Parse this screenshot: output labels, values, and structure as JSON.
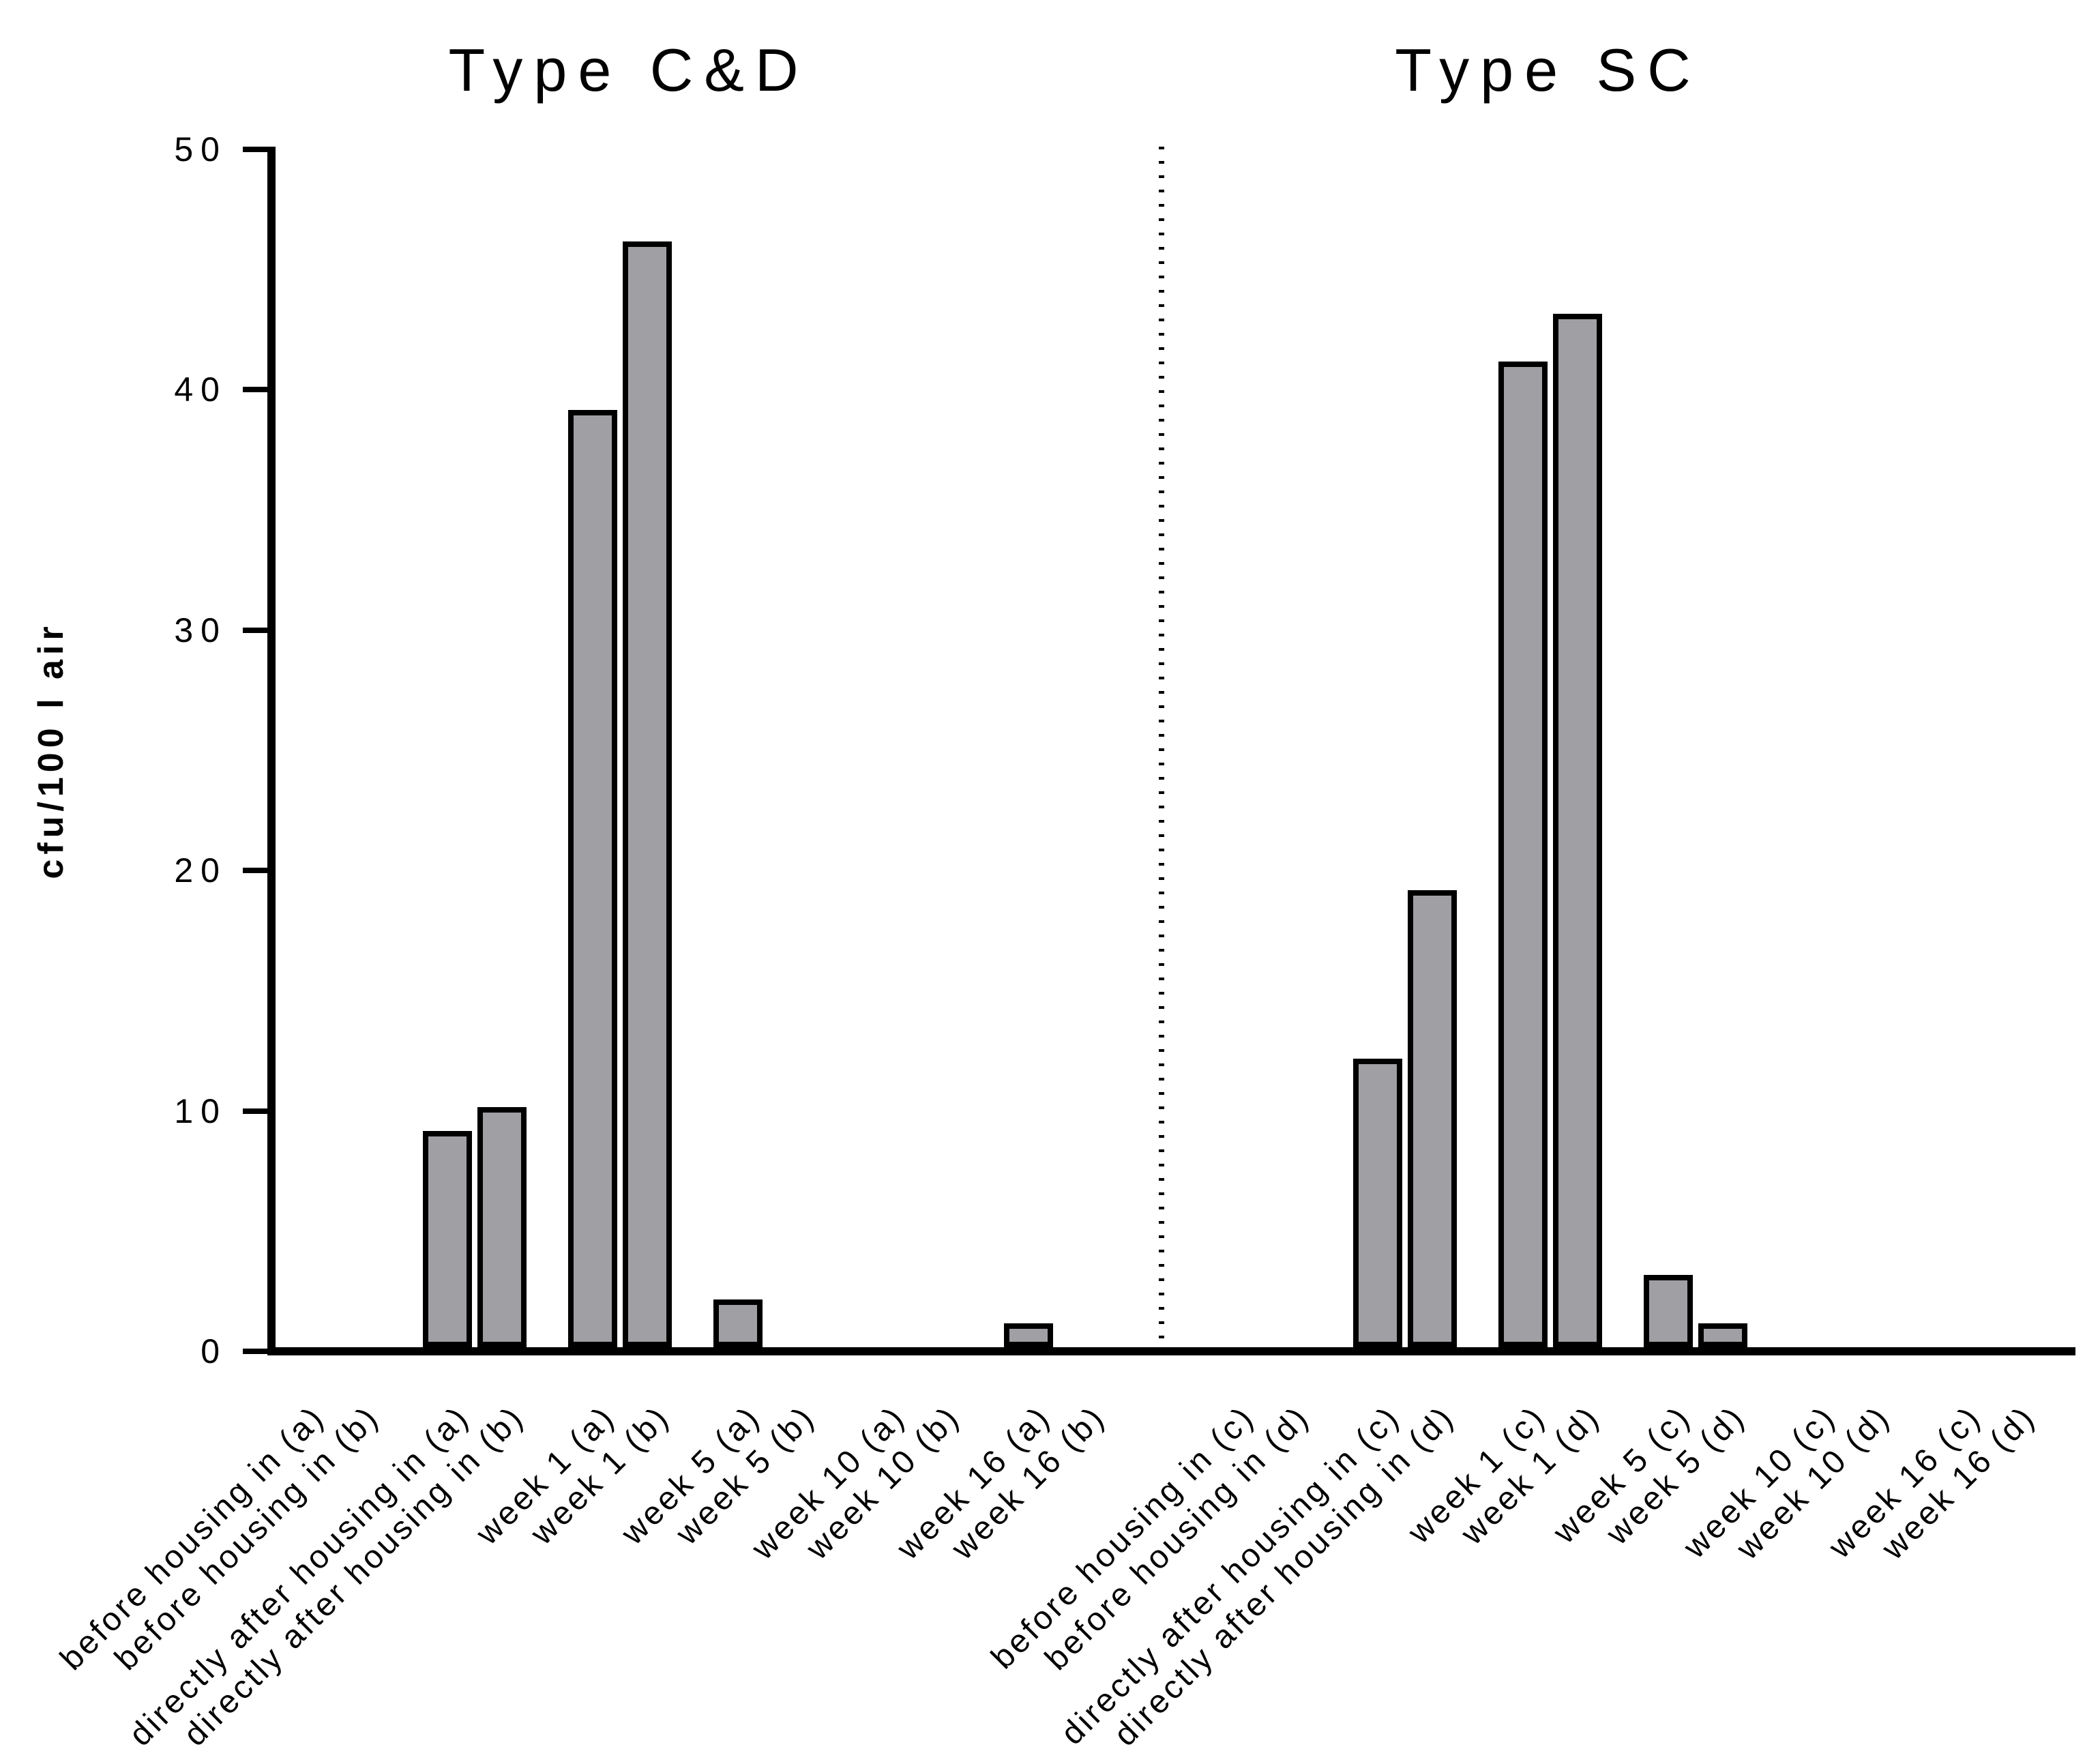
{
  "page": {
    "background": "#ffffff"
  },
  "titles": {
    "left": "Type C&D",
    "right": "Type SC"
  },
  "y_axis": {
    "label": "cfu/100 l air"
  },
  "chart_data": {
    "type": "bar",
    "title": "",
    "xlabel": "",
    "ylabel": "cfu/100 l air",
    "ylim": [
      0,
      50
    ],
    "yticks": [
      0,
      10,
      20,
      30,
      40,
      50
    ],
    "grid": false,
    "legend": "none",
    "bar_fill": "#a0a0a4",
    "bar_stroke": "#000000",
    "panels": [
      {
        "title": "Type C&D",
        "categories": [
          "before housing in (a)",
          "before housing in (b)",
          "directly after housing in (a)",
          "directly after housing in (b)",
          "week 1 (a)",
          "week 1 (b)",
          "week 5 (a)",
          "week 5 (b)",
          "week 10 (a)",
          "week 10 (b)",
          "week 16 (a)",
          "week 16 (b)"
        ],
        "values": [
          0,
          0,
          9,
          10,
          39,
          46,
          2,
          0,
          0,
          0,
          1,
          0
        ]
      },
      {
        "title": "Type SC",
        "categories": [
          "before housing in (c)",
          "before housing in (d)",
          "directly after housing in (c)",
          "directly after housing in (d)",
          "week 1 (c)",
          "week 1 (d)",
          "week 5 (c)",
          "week 5 (d)",
          "week 10 (c)",
          "week 10 (d)",
          "week 16 (c)",
          "week 16 (d)"
        ],
        "values": [
          0,
          0,
          12,
          19,
          41,
          43,
          3,
          1,
          0,
          0,
          0,
          0
        ]
      }
    ]
  }
}
